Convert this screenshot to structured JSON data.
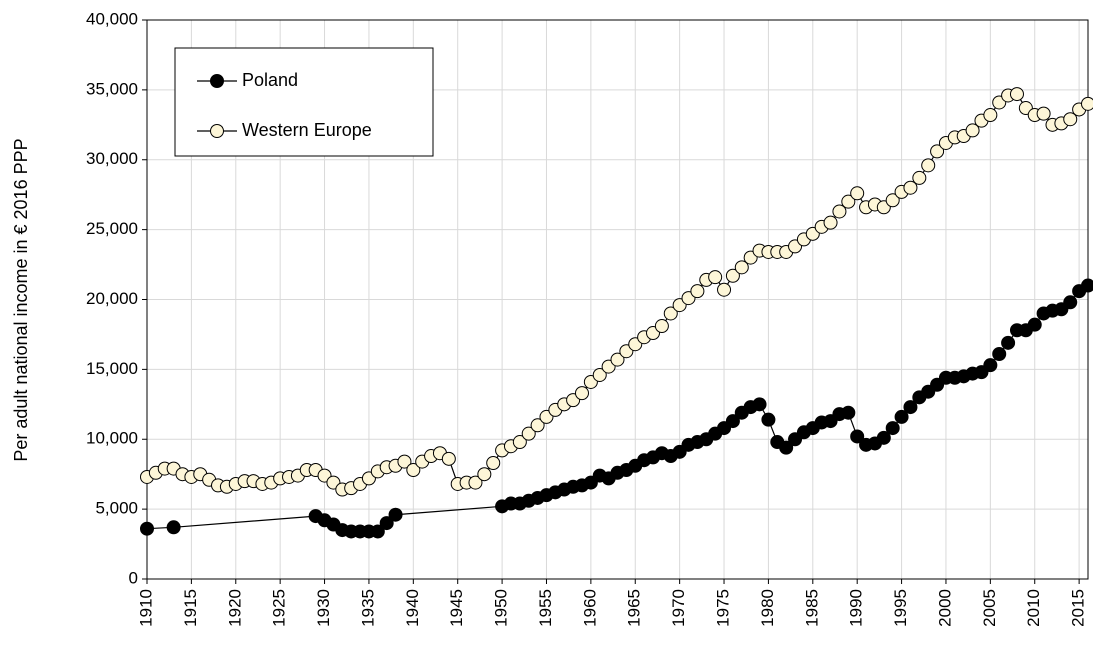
{
  "chart_data": {
    "type": "line",
    "y_label": "Per adult national income in € 2016 PPP",
    "xlim": [
      1910,
      2016
    ],
    "xticks": [
      1910,
      1915,
      1920,
      1925,
      1930,
      1935,
      1940,
      1945,
      1950,
      1955,
      1960,
      1965,
      1970,
      1975,
      1980,
      1985,
      1990,
      1995,
      2000,
      2005,
      2010,
      2015
    ],
    "ylim": [
      0,
      40000
    ],
    "yticks": [
      0,
      {
        "value": 5000,
        "label": "5,000"
      },
      {
        "value": 10000,
        "label": "10,000"
      },
      {
        "value": 15000,
        "label": "15,000"
      },
      {
        "value": 20000,
        "label": "20,000"
      },
      {
        "value": 25000,
        "label": "25,000"
      },
      {
        "value": 30000,
        "label": "30,000"
      },
      {
        "value": 35000,
        "label": "35,000"
      },
      {
        "value": 40000,
        "label": "40,000"
      }
    ],
    "grid": true,
    "legend": "upper left",
    "series": [
      {
        "name": "Poland",
        "color": "#000000",
        "x": [
          1910,
          1913,
          1929,
          1930,
          1931,
          1932,
          1933,
          1934,
          1935,
          1936,
          1937,
          1938,
          1950,
          1951,
          1952,
          1953,
          1954,
          1955,
          1956,
          1957,
          1958,
          1959,
          1960,
          1961,
          1962,
          1963,
          1964,
          1965,
          1966,
          1967,
          1968,
          1969,
          1970,
          1971,
          1972,
          1973,
          1974,
          1975,
          1976,
          1977,
          1978,
          1979,
          1980,
          1981,
          1982,
          1983,
          1984,
          1985,
          1986,
          1987,
          1988,
          1989,
          1990,
          1991,
          1992,
          1993,
          1994,
          1995,
          1996,
          1997,
          1998,
          1999,
          2000,
          2001,
          2002,
          2003,
          2004,
          2005,
          2006,
          2007,
          2008,
          2009,
          2010,
          2011,
          2012,
          2013,
          2014,
          2015,
          2016
        ],
        "values": [
          3600,
          3700,
          4500,
          4200,
          3900,
          3500,
          3400,
          3400,
          3400,
          3400,
          4000,
          4600,
          5200,
          5400,
          5400,
          5600,
          5800,
          6000,
          6200,
          6400,
          6600,
          6700,
          6900,
          7400,
          7200,
          7600,
          7800,
          8100,
          8500,
          8700,
          9000,
          8800,
          9100,
          9600,
          9800,
          10000,
          10400,
          10800,
          11300,
          11900,
          12300,
          12500,
          11400,
          9800,
          9400,
          10000,
          10500,
          10800,
          11200,
          11300,
          11800,
          11900,
          10200,
          9600,
          9700,
          10100,
          10800,
          11600,
          12300,
          13000,
          13400,
          13900,
          14400,
          14400,
          14500,
          14700,
          14800,
          15300,
          16100,
          16900,
          17800,
          17800,
          18200,
          19000,
          19200,
          19300,
          19800,
          20600,
          21000
        ]
      },
      {
        "name": "Western Europe",
        "color": "#fdf6d8",
        "x": [
          1910,
          1911,
          1912,
          1913,
          1914,
          1915,
          1916,
          1917,
          1918,
          1919,
          1920,
          1921,
          1922,
          1923,
          1924,
          1925,
          1926,
          1927,
          1928,
          1929,
          1930,
          1931,
          1932,
          1933,
          1934,
          1935,
          1936,
          1937,
          1938,
          1939,
          1940,
          1941,
          1942,
          1943,
          1944,
          1945,
          1946,
          1947,
          1948,
          1949,
          1950,
          1951,
          1952,
          1953,
          1954,
          1955,
          1956,
          1957,
          1958,
          1959,
          1960,
          1961,
          1962,
          1963,
          1964,
          1965,
          1966,
          1967,
          1968,
          1969,
          1970,
          1971,
          1972,
          1973,
          1974,
          1975,
          1976,
          1977,
          1978,
          1979,
          1980,
          1981,
          1982,
          1983,
          1984,
          1985,
          1986,
          1987,
          1988,
          1989,
          1990,
          1991,
          1992,
          1993,
          1994,
          1995,
          1996,
          1997,
          1998,
          1999,
          2000,
          2001,
          2002,
          2003,
          2004,
          2005,
          2006,
          2007,
          2008,
          2009,
          2010,
          2011,
          2012,
          2013,
          2014,
          2015,
          2016
        ],
        "values": [
          7300,
          7600,
          7900,
          7900,
          7500,
          7300,
          7500,
          7100,
          6700,
          6600,
          6800,
          7000,
          7000,
          6800,
          6900,
          7200,
          7300,
          7400,
          7800,
          7800,
          7400,
          6900,
          6400,
          6500,
          6800,
          7200,
          7700,
          8000,
          8100,
          8400,
          7800,
          8400,
          8800,
          9000,
          8600,
          6800,
          6900,
          6900,
          7500,
          8300,
          9200,
          9500,
          9800,
          10400,
          11000,
          11600,
          12100,
          12500,
          12800,
          13300,
          14100,
          14600,
          15200,
          15700,
          16300,
          16800,
          17300,
          17600,
          18100,
          19000,
          19600,
          20100,
          20600,
          21400,
          21600,
          20700,
          21700,
          22300,
          23000,
          23500,
          23400,
          23400,
          23400,
          23800,
          24300,
          24700,
          25200,
          25500,
          26300,
          27000,
          27600,
          26600,
          26800,
          26600,
          27100,
          27700,
          28000,
          28700,
          29600,
          30600,
          31200,
          31600,
          31700,
          32100,
          32800,
          33200,
          34100,
          34600,
          34700,
          33700,
          33200,
          33300,
          32500,
          32600,
          32900,
          33600,
          34000
        ]
      }
    ]
  }
}
